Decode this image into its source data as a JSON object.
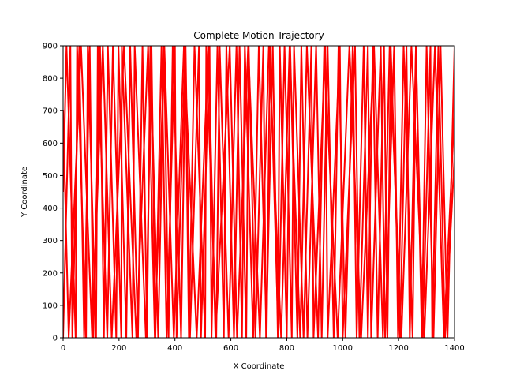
{
  "chart_data": {
    "type": "line",
    "title": "Complete Motion Trajectory",
    "xlabel": "X Coordinate",
    "ylabel": "Y Coordinate",
    "xlim": [
      0,
      1400
    ],
    "ylim": [
      0,
      900
    ],
    "xticks": [
      0,
      200,
      400,
      600,
      800,
      1000,
      1200,
      1400
    ],
    "yticks": [
      0,
      100,
      200,
      300,
      400,
      500,
      600,
      700,
      800,
      900
    ],
    "grid": false,
    "legend": "none",
    "line_color": "#ff0000",
    "series": [
      {
        "x": [
          0,
          26,
          33,
          58,
          75,
          95,
          108,
          132,
          146,
          160,
          190,
          198,
          226,
          240,
          268,
          284,
          300,
          312,
          340,
          361,
          377,
          392,
          422,
          438,
          454,
          486,
          493,
          524,
          531,
          552,
          575,
          584,
          611,
          631,
          655,
          664,
          688,
          716,
          726,
          750,
          768,
          775,
          800,
          812,
          838,
          852,
          874,
          905,
          925,
          946,
          968,
          985,
          1010,
          1036,
          1050,
          1075,
          1090,
          1108,
          1125,
          1148,
          1160,
          1172,
          1205,
          1228,
          1240,
          1262,
          1283,
          1300,
          1325,
          1350,
          1375,
          1400
        ],
        "y": [
          0,
          900,
          0,
          900,
          0,
          900,
          0,
          900,
          0,
          900,
          0,
          900,
          0,
          900,
          0,
          900,
          0,
          900,
          0,
          900,
          0,
          900,
          0,
          900,
          0,
          900,
          0,
          900,
          0,
          900,
          0,
          900,
          0,
          900,
          0,
          900,
          0,
          900,
          0,
          900,
          0,
          900,
          0,
          900,
          0,
          900,
          0,
          900,
          0,
          900,
          0,
          900,
          0,
          900,
          0,
          900,
          0,
          900,
          0,
          900,
          0,
          900,
          0,
          900,
          0,
          900,
          0,
          900,
          0,
          900,
          0,
          900
        ]
      },
      {
        "x": [
          0,
          12,
          45,
          50,
          82,
          88,
          118,
          124,
          158,
          178,
          208,
          210,
          248,
          256,
          296,
          316,
          330,
          352,
          370,
          400,
          406,
          437,
          450,
          470,
          508,
          512,
          548,
          560,
          592,
          620,
          640,
          650,
          680,
          700,
          728,
          740,
          770,
          792,
          818,
          826,
          860,
          888,
          896,
          938,
          946,
          990,
          1000,
          1044,
          1060,
          1090,
          1102,
          1136,
          1152,
          1184,
          1198,
          1218,
          1250,
          1262,
          1286,
          1314,
          1320,
          1342,
          1366,
          1400
        ],
        "y": [
          450,
          900,
          0,
          900,
          0,
          900,
          0,
          900,
          0,
          900,
          0,
          900,
          0,
          900,
          0,
          900,
          0,
          900,
          0,
          900,
          0,
          900,
          0,
          900,
          0,
          900,
          0,
          900,
          0,
          900,
          0,
          900,
          0,
          900,
          0,
          900,
          0,
          900,
          0,
          900,
          0,
          900,
          0,
          900,
          0,
          900,
          0,
          900,
          0,
          900,
          0,
          900,
          0,
          900,
          0,
          900,
          0,
          900,
          0,
          900,
          0,
          900,
          0,
          560
        ]
      },
      {
        "x": [
          0,
          20,
          64,
          104,
          142,
          174,
          218,
          262,
          304,
          328,
          362,
          396,
          432,
          478,
          520,
          545,
          596,
          622,
          662,
          704,
          736,
          780,
          810,
          848,
          872,
          912,
          934,
          982,
          1024,
          1066,
          1112,
          1144,
          1168,
          1210,
          1246,
          1292,
          1330,
          1362,
          1400
        ],
        "y": [
          700,
          0,
          900,
          0,
          900,
          0,
          900,
          0,
          900,
          0,
          900,
          0,
          900,
          0,
          900,
          0,
          900,
          0,
          900,
          0,
          900,
          0,
          900,
          0,
          900,
          0,
          900,
          0,
          900,
          0,
          900,
          0,
          900,
          0,
          900,
          0,
          900,
          0,
          700
        ]
      }
    ]
  }
}
